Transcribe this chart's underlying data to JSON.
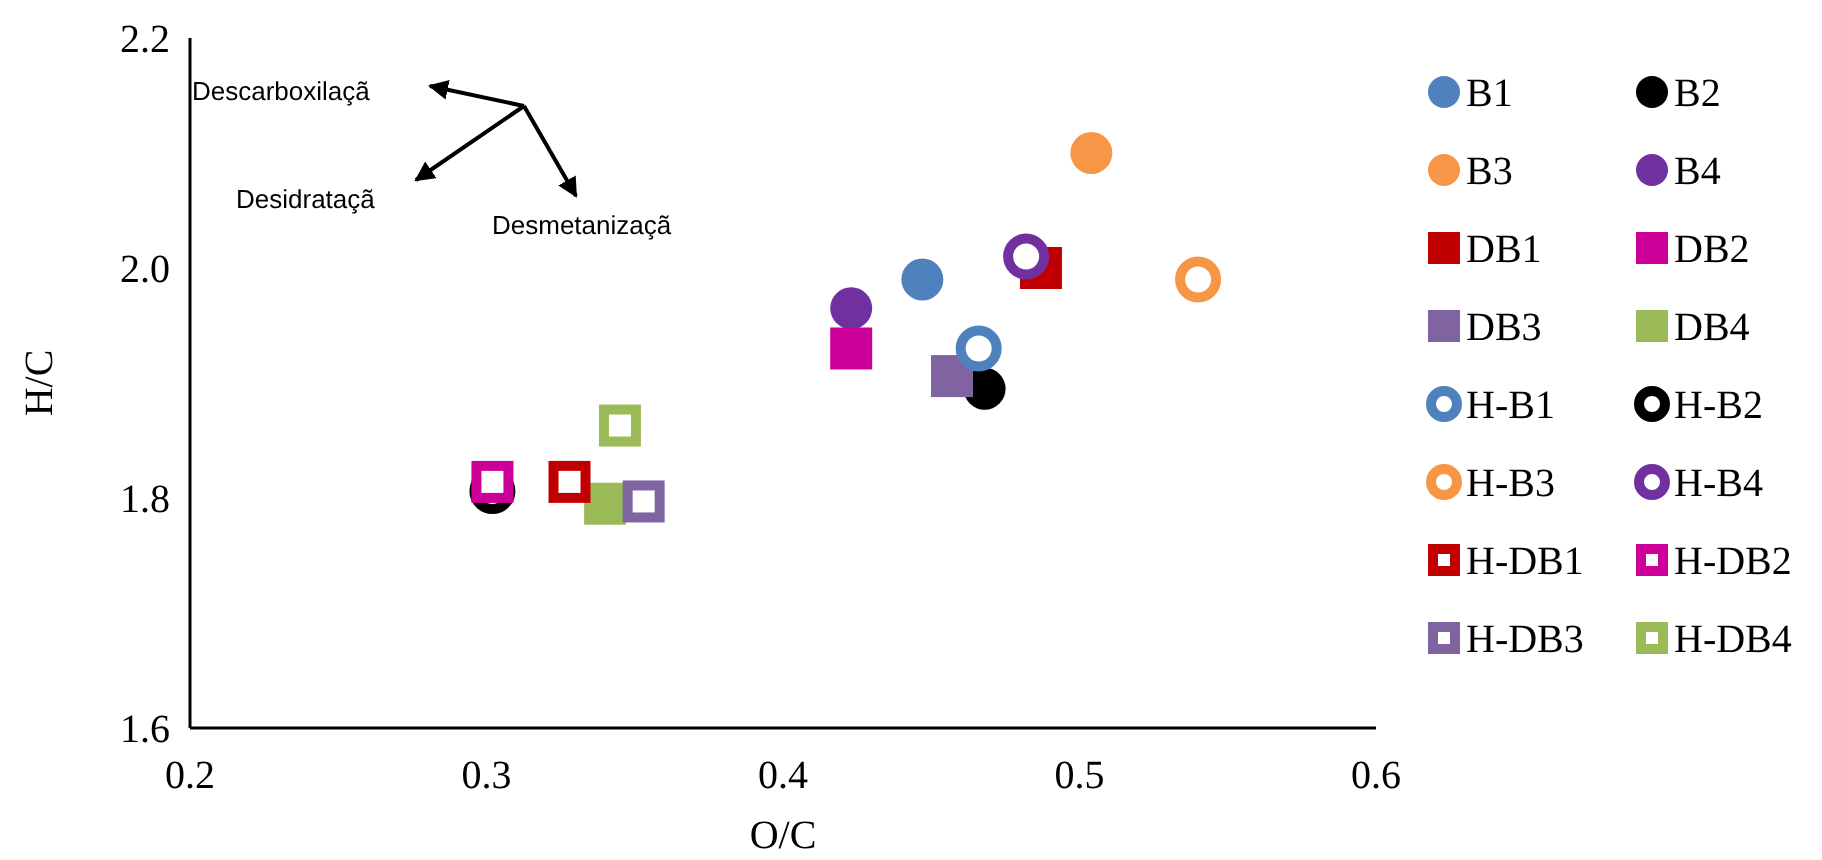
{
  "chart_data": {
    "type": "scatter",
    "xlabel": "O/C",
    "ylabel": "H/C",
    "xlim": [
      0.2,
      0.6
    ],
    "xticks": [
      0.2,
      0.3,
      0.4,
      0.5,
      0.6
    ],
    "ylim": [
      1.6,
      2.2
    ],
    "yticks": [
      1.6,
      1.8,
      {
        "value": 2.0,
        "label": "2.0"
      },
      2.2
    ],
    "grid": false,
    "legend": "right",
    "annotations": [
      "Descarboxilaçã",
      "Desidrataçã",
      "Desmetanizaçã"
    ],
    "series": [
      {
        "name": "B1",
        "color": "#4f81bd",
        "marker": "circle",
        "x": [
          0.447
        ],
        "values": [
          1.99
        ]
      },
      {
        "name": "B2",
        "color": "#000000",
        "marker": "circle",
        "x": [
          0.468
        ],
        "values": [
          1.895
        ]
      },
      {
        "name": "B3",
        "color": "#f79646",
        "marker": "circle",
        "x": [
          0.504
        ],
        "values": [
          2.1
        ]
      },
      {
        "name": "B4",
        "color": "#7030a0",
        "marker": "circle",
        "x": [
          0.423
        ],
        "values": [
          1.965
        ]
      },
      {
        "name": "DB1",
        "color": "#c00000",
        "marker": "square",
        "x": [
          0.487
        ],
        "values": [
          2.0
        ]
      },
      {
        "name": "DB2",
        "color": "#cc0099",
        "marker": "square",
        "x": [
          0.423
        ],
        "values": [
          1.93
        ]
      },
      {
        "name": "DB3",
        "color": "#8064a2",
        "marker": "square",
        "x": [
          0.457
        ],
        "values": [
          1.906
        ]
      },
      {
        "name": "DB4",
        "color": "#9bbb59",
        "marker": "square",
        "x": [
          0.34
        ],
        "values": [
          1.795
        ]
      },
      {
        "name": "H-B1",
        "color": "#4f81bd",
        "marker": "circle-open",
        "x": [
          0.466
        ],
        "values": [
          1.93
        ]
      },
      {
        "name": "H-B2",
        "color": "#000000",
        "marker": "circle-open",
        "x": [
          0.302
        ],
        "values": [
          1.806
        ]
      },
      {
        "name": "H-B3",
        "color": "#f79646",
        "marker": "circle-open",
        "x": [
          0.54
        ],
        "values": [
          1.99
        ]
      },
      {
        "name": "H-B4",
        "color": "#7030a0",
        "marker": "circle-open",
        "x": [
          0.482
        ],
        "values": [
          2.01
        ]
      },
      {
        "name": "H-DB1",
        "color": "#c00000",
        "marker": "square-open",
        "x": [
          0.328
        ],
        "values": [
          1.814
        ]
      },
      {
        "name": "H-DB2",
        "color": "#cc0099",
        "marker": "square-open",
        "x": [
          0.302
        ],
        "values": [
          1.814
        ]
      },
      {
        "name": "H-DB3",
        "color": "#8064a2",
        "marker": "square-open",
        "x": [
          0.353
        ],
        "values": [
          1.797
        ]
      },
      {
        "name": "H-DB4",
        "color": "#9bbb59",
        "marker": "square-open",
        "x": [
          0.345
        ],
        "values": [
          1.863
        ]
      }
    ]
  }
}
